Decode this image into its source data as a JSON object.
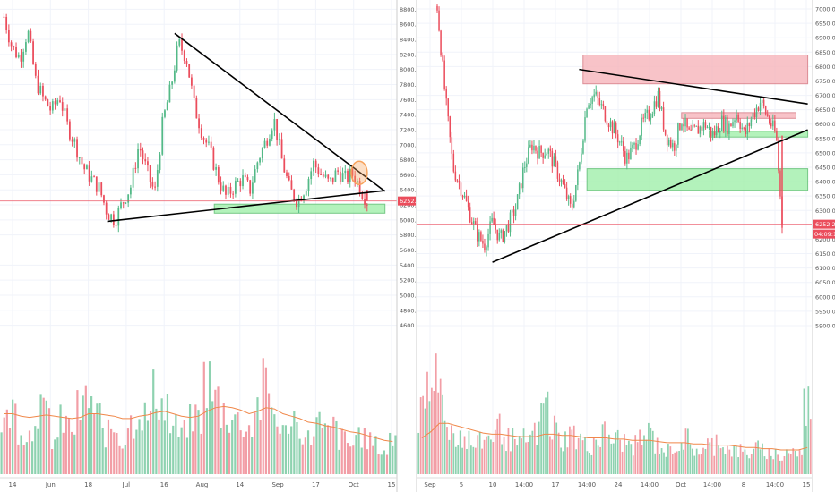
{
  "colors": {
    "up": "#53b987",
    "down": "#eb4d5c",
    "volume_up": "#8ed2b0",
    "volume_down": "#f29ea6",
    "grid": "#f0f3fa",
    "axis_text": "#555555",
    "resistance_zone": "#f7b9bf",
    "support_zone": "#a6f0b0",
    "price_line": "#eb4d5c",
    "ma_line": "#f0884a",
    "highlight_circle": "#f7a35c",
    "label_bg": "#eb4d5c"
  },
  "chart_data": [
    {
      "type": "candlestick",
      "title": "",
      "xlabel": "",
      "ylabel": "",
      "ylim": [
        4500,
        8900
      ],
      "x_ticks": [
        "14",
        "Jun",
        "18",
        "Jul",
        "16",
        "Aug",
        "14",
        "Sep",
        "17",
        "Oct",
        "15"
      ],
      "y_ticks": [
        "8800.0",
        "8600.0",
        "8400.0",
        "8200.0",
        "8000.0",
        "7800.0",
        "7600.0",
        "7400.0",
        "7200.0",
        "7000.0",
        "6800.0",
        "6600.0",
        "6400.0",
        "6200.0",
        "6000.0",
        "5800.0",
        "5600.0",
        "5400.0",
        "5200.0",
        "5000.0",
        "4800.0",
        "4600.0"
      ],
      "last_price": "6252.2",
      "trendlines": [
        {
          "name": "descending-resistance",
          "from": [
            0.44,
            8480
          ],
          "to": [
            0.97,
            6380
          ]
        },
        {
          "name": "ascending-support",
          "from": [
            0.27,
            5980
          ],
          "to": [
            0.97,
            6390
          ]
        }
      ],
      "zones": [
        {
          "name": "support",
          "x": [
            0.54,
            0.97
          ],
          "y": [
            6090,
            6210
          ]
        }
      ],
      "highlight": {
        "x": 0.905,
        "y": 6625
      },
      "series": [
        {
          "points": [
            [
              0.01,
              8700
            ],
            [
              0.03,
              8300
            ],
            [
              0.05,
              8150
            ],
            [
              0.07,
              8520
            ],
            [
              0.09,
              7850
            ],
            [
              0.11,
              7600
            ],
            [
              0.13,
              7450
            ],
            [
              0.15,
              7650
            ],
            [
              0.17,
              7250
            ],
            [
              0.19,
              7000
            ],
            [
              0.21,
              6700
            ],
            [
              0.23,
              6550
            ],
            [
              0.25,
              6420
            ],
            [
              0.27,
              6100
            ],
            [
              0.29,
              6000
            ],
            [
              0.31,
              6250
            ],
            [
              0.33,
              6450
            ],
            [
              0.35,
              7000
            ],
            [
              0.37,
              6650
            ],
            [
              0.39,
              6350
            ],
            [
              0.41,
              7300
            ],
            [
              0.43,
              7750
            ],
            [
              0.45,
              8350
            ],
            [
              0.47,
              8150
            ],
            [
              0.49,
              7500
            ],
            [
              0.51,
              7150
            ],
            [
              0.53,
              6900
            ],
            [
              0.55,
              6550
            ],
            [
              0.57,
              6300
            ],
            [
              0.59,
              6450
            ],
            [
              0.61,
              6550
            ],
            [
              0.63,
              6400
            ],
            [
              0.65,
              6800
            ],
            [
              0.67,
              7050
            ],
            [
              0.69,
              7350
            ],
            [
              0.71,
              6800
            ],
            [
              0.73,
              6400
            ],
            [
              0.75,
              6250
            ],
            [
              0.77,
              6450
            ],
            [
              0.79,
              6750
            ],
            [
              0.81,
              6600
            ],
            [
              0.83,
              6480
            ],
            [
              0.85,
              6650
            ],
            [
              0.87,
              6550
            ],
            [
              0.89,
              6610
            ],
            [
              0.91,
              6400
            ],
            [
              0.925,
              6252
            ]
          ]
        }
      ],
      "volume": {
        "values": [
          0.45,
          0.55,
          0.4,
          0.35,
          0.6,
          0.5,
          0.3,
          0.45,
          0.4,
          0.55,
          0.65,
          0.5,
          0.35,
          0.4,
          0.3,
          0.45,
          0.55,
          0.5,
          0.7,
          0.6,
          0.4,
          0.35,
          0.45,
          0.5,
          0.8,
          0.65,
          0.55,
          0.5,
          0.45,
          0.4,
          0.6,
          0.75,
          0.55,
          0.35,
          0.5,
          0.4,
          0.3,
          0.45,
          0.35,
          0.4,
          0.3,
          0.25,
          0.35,
          0.3,
          0.25,
          0.2,
          0.3
        ],
        "ma": [
          0.5,
          0.5,
          0.48,
          0.47,
          0.48,
          0.49,
          0.48,
          0.47,
          0.46,
          0.47,
          0.5,
          0.5,
          0.49,
          0.48,
          0.46,
          0.46,
          0.48,
          0.49,
          0.51,
          0.52,
          0.5,
          0.48,
          0.47,
          0.48,
          0.52,
          0.55,
          0.56,
          0.55,
          0.53,
          0.5,
          0.52,
          0.55,
          0.54,
          0.5,
          0.48,
          0.46,
          0.43,
          0.42,
          0.4,
          0.39,
          0.37,
          0.35,
          0.34,
          0.32,
          0.3,
          0.28,
          0.27
        ]
      }
    },
    {
      "type": "candlestick",
      "title": "",
      "xlabel": "",
      "ylabel": "",
      "ylim": [
        5875,
        7025
      ],
      "x_ticks": [
        "Sep",
        "5",
        "10",
        "14:00",
        "17",
        "14:00",
        "24",
        "14:00",
        "Oct",
        "14:00",
        "8",
        "14:00",
        "15"
      ],
      "y_ticks": [
        "7000.0",
        "6950.0",
        "6900.0",
        "6850.0",
        "6800.0",
        "6750.0",
        "6700.0",
        "6650.0",
        "6600.0",
        "6550.0",
        "6500.0",
        "6450.0",
        "6400.0",
        "6350.0",
        "6300.0",
        "6250.0",
        "6200.0",
        "6150.0",
        "6100.0",
        "6050.0",
        "6000.0",
        "5950.0",
        "5900.0"
      ],
      "last_price": "6252.2",
      "countdown": "04:09:10",
      "trendlines": [
        {
          "name": "descending-resistance",
          "from": [
            0.41,
            6790
          ],
          "to": [
            0.99,
            6670
          ]
        },
        {
          "name": "ascending-support",
          "from": [
            0.19,
            6120
          ],
          "to": [
            0.99,
            6580
          ]
        }
      ],
      "zones": [
        {
          "name": "resistance-upper",
          "x": [
            0.42,
            0.99
          ],
          "y": [
            6740,
            6840
          ]
        },
        {
          "name": "resistance-lower",
          "x": [
            0.67,
            0.96
          ],
          "y": [
            6620,
            6640
          ]
        },
        {
          "name": "support-upper",
          "x": [
            0.74,
            0.99
          ],
          "y": [
            6555,
            6575
          ]
        },
        {
          "name": "support-lower",
          "x": [
            0.43,
            0.99
          ],
          "y": [
            6370,
            6445
          ]
        }
      ],
      "series": [
        {
          "points": [
            [
              0.05,
              7010
            ],
            [
              0.07,
              6700
            ],
            [
              0.09,
              6450
            ],
            [
              0.11,
              6380
            ],
            [
              0.13,
              6300
            ],
            [
              0.15,
              6220
            ],
            [
              0.17,
              6180
            ],
            [
              0.19,
              6260
            ],
            [
              0.21,
              6200
            ],
            [
              0.23,
              6250
            ],
            [
              0.25,
              6310
            ],
            [
              0.27,
              6450
            ],
            [
              0.29,
              6530
            ],
            [
              0.31,
              6500
            ],
            [
              0.33,
              6510
            ],
            [
              0.35,
              6450
            ],
            [
              0.37,
              6380
            ],
            [
              0.39,
              6300
            ],
            [
              0.41,
              6450
            ],
            [
              0.43,
              6680
            ],
            [
              0.45,
              6700
            ],
            [
              0.47,
              6650
            ],
            [
              0.49,
              6600
            ],
            [
              0.51,
              6550
            ],
            [
              0.53,
              6480
            ],
            [
              0.55,
              6520
            ],
            [
              0.57,
              6600
            ],
            [
              0.59,
              6640
            ],
            [
              0.61,
              6700
            ],
            [
              0.63,
              6560
            ],
            [
              0.65,
              6520
            ],
            [
              0.67,
              6620
            ],
            [
              0.69,
              6560
            ],
            [
              0.71,
              6580
            ],
            [
              0.73,
              6600
            ],
            [
              0.75,
              6560
            ],
            [
              0.77,
              6610
            ],
            [
              0.79,
              6590
            ],
            [
              0.81,
              6640
            ],
            [
              0.83,
              6560
            ],
            [
              0.85,
              6630
            ],
            [
              0.87,
              6680
            ],
            [
              0.89,
              6620
            ],
            [
              0.91,
              6560
            ],
            [
              0.925,
              6252
            ]
          ]
        }
      ],
      "volume": {
        "values": [
          0.5,
          0.7,
          0.95,
          0.4,
          0.35,
          0.3,
          0.25,
          0.3,
          0.35,
          0.4,
          0.3,
          0.25,
          0.3,
          0.35,
          0.6,
          0.4,
          0.3,
          0.35,
          0.3,
          0.25,
          0.3,
          0.35,
          0.3,
          0.28,
          0.25,
          0.3,
          0.35,
          0.25,
          0.2,
          0.25,
          0.3,
          0.22,
          0.2,
          0.25,
          0.3,
          0.22,
          0.2,
          0.18,
          0.22,
          0.2,
          0.18,
          0.15,
          0.2,
          0.18,
          0.6
        ],
        "ma": [
          0.3,
          0.35,
          0.42,
          0.42,
          0.4,
          0.38,
          0.36,
          0.34,
          0.33,
          0.33,
          0.32,
          0.31,
          0.31,
          0.31,
          0.33,
          0.33,
          0.32,
          0.32,
          0.31,
          0.3,
          0.3,
          0.3,
          0.29,
          0.29,
          0.28,
          0.28,
          0.28,
          0.27,
          0.26,
          0.26,
          0.26,
          0.25,
          0.25,
          0.24,
          0.24,
          0.24,
          0.23,
          0.22,
          0.22,
          0.21,
          0.21,
          0.2,
          0.2,
          0.2,
          0.22
        ]
      }
    }
  ]
}
